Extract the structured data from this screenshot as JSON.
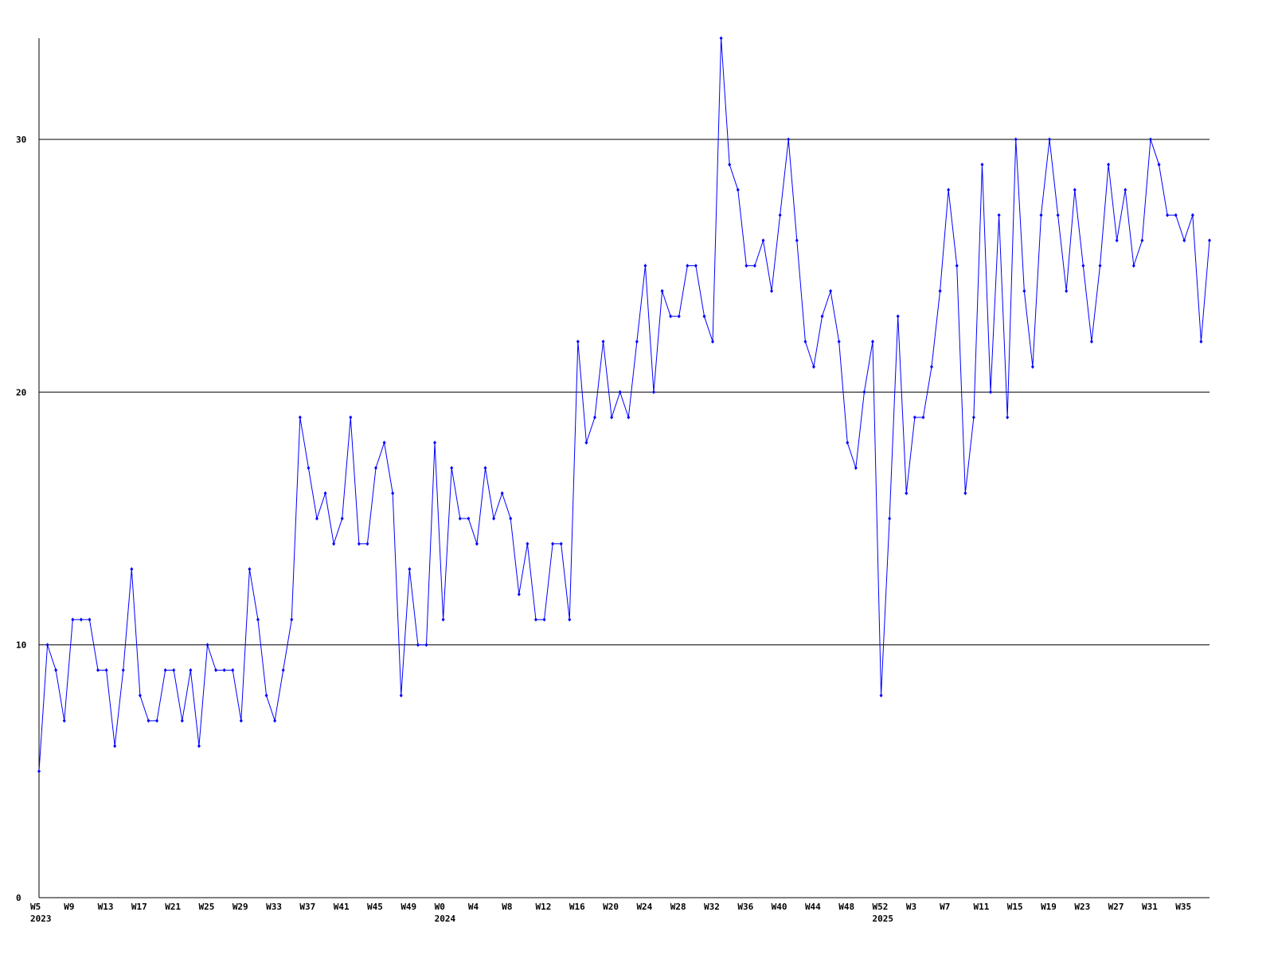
{
  "chart_data": {
    "type": "line",
    "categories": [
      "W5",
      null,
      null,
      null,
      "W9",
      null,
      null,
      null,
      "W13",
      null,
      null,
      null,
      "W17",
      null,
      null,
      null,
      "W21",
      null,
      null,
      null,
      "W25",
      null,
      null,
      null,
      "W29",
      null,
      null,
      null,
      "W33",
      null,
      null,
      null,
      "W37",
      null,
      null,
      null,
      "W41",
      null,
      null,
      null,
      "W45",
      null,
      null,
      null,
      "W49",
      null,
      null,
      null,
      "W0",
      null,
      null,
      null,
      "W4",
      null,
      null,
      null,
      "W8",
      null,
      null,
      null,
      "W12",
      null,
      null,
      null,
      "W16",
      null,
      null,
      null,
      "W20",
      null,
      null,
      null,
      "W24",
      null,
      null,
      null,
      "W28",
      null,
      null,
      null,
      "W32",
      null,
      null,
      null,
      "W36",
      null,
      null,
      null,
      "W40",
      null,
      null,
      null,
      "W44",
      null,
      null,
      null,
      "W48",
      null,
      null,
      null,
      "W52",
      null,
      null,
      null,
      "W3",
      null,
      null,
      null,
      "W7",
      null,
      null,
      null,
      "W11",
      null,
      null,
      null,
      "W15",
      null,
      null,
      null,
      "W19",
      null,
      null,
      null,
      "W23",
      null,
      null,
      null,
      "W27",
      null,
      null,
      null,
      "W31",
      null,
      null,
      null,
      "W35",
      null,
      null,
      null
    ],
    "years": [
      "2023",
      null,
      null,
      null,
      null,
      null,
      null,
      null,
      null,
      null,
      null,
      null,
      null,
      null,
      null,
      null,
      null,
      null,
      null,
      null,
      null,
      null,
      null,
      null,
      null,
      null,
      null,
      null,
      null,
      null,
      null,
      null,
      null,
      null,
      null,
      null,
      null,
      null,
      null,
      null,
      null,
      null,
      null,
      null,
      null,
      null,
      null,
      null,
      "2024",
      null,
      null,
      null,
      null,
      null,
      null,
      null,
      null,
      null,
      null,
      null,
      null,
      null,
      null,
      null,
      null,
      null,
      null,
      null,
      null,
      null,
      null,
      null,
      null,
      null,
      null,
      null,
      null,
      null,
      null,
      null,
      null,
      null,
      null,
      null,
      null,
      null,
      null,
      null,
      null,
      null,
      null,
      null,
      null,
      null,
      null,
      null,
      null,
      null,
      null,
      null,
      "2025",
      null,
      null,
      null,
      null,
      null,
      null,
      null,
      null,
      null,
      null,
      null,
      null,
      null,
      null,
      null,
      null,
      null,
      null,
      null,
      null,
      null,
      null,
      null,
      null,
      null,
      null,
      null,
      null,
      null,
      null,
      null,
      null,
      null,
      null,
      null,
      null,
      null,
      null,
      null
    ],
    "series": [
      {
        "color": "#0000ff",
        "values": [
          5,
          10,
          9,
          7,
          11,
          11,
          11,
          9,
          9,
          6,
          9,
          13,
          8,
          7,
          7,
          9,
          9,
          7,
          9,
          6,
          10,
          9,
          9,
          9,
          7,
          13,
          11,
          8,
          7,
          9,
          11,
          19,
          17,
          15,
          16,
          14,
          15,
          19,
          14,
          14,
          17,
          18,
          16,
          8,
          13,
          10,
          10,
          18,
          11,
          17,
          15,
          15,
          14,
          17,
          15,
          16,
          15,
          12,
          14,
          11,
          11,
          14,
          14,
          11,
          22,
          18,
          19,
          22,
          19,
          20,
          19,
          22,
          25,
          20,
          24,
          23,
          23,
          25,
          25,
          23,
          22,
          34,
          29,
          28,
          25,
          25,
          26,
          24,
          27,
          30,
          26,
          22,
          21,
          23,
          24,
          22,
          18,
          17,
          20,
          22,
          8,
          15,
          23,
          16,
          19,
          19,
          21,
          24,
          28,
          25,
          16,
          19,
          29,
          20,
          27,
          19,
          30,
          24,
          21,
          27,
          30,
          27,
          24,
          28,
          25,
          22,
          25,
          29,
          26,
          28,
          25,
          26,
          30,
          29,
          27,
          27,
          26,
          27,
          22,
          26
        ]
      }
    ],
    "ylim": [
      0,
      34
    ],
    "yticks": [
      0,
      10,
      20,
      30
    ],
    "grid": true
  }
}
